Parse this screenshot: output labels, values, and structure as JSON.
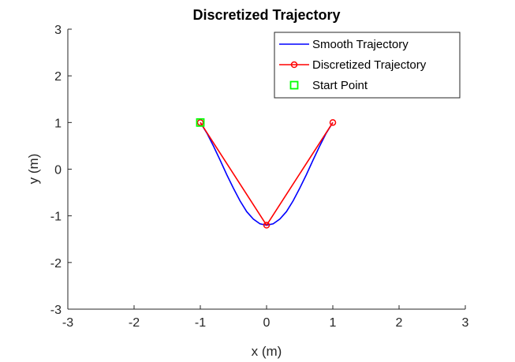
{
  "chart_data": {
    "type": "line",
    "title": "Discretized Trajectory",
    "xlabel": "x (m)",
    "ylabel": "y (m)",
    "xlim": [
      -3,
      3
    ],
    "ylim": [
      -3,
      3
    ],
    "xticks": [
      -3,
      -2,
      -1,
      0,
      1,
      2,
      3
    ],
    "yticks": [
      -3,
      -2,
      -1,
      0,
      1,
      2,
      3
    ],
    "xtick_labels": [
      "-3",
      "-2",
      "-1",
      "0",
      "1",
      "2",
      "3"
    ],
    "ytick_labels": [
      "-3",
      "-2",
      "-1",
      "0",
      "1",
      "2",
      "3"
    ],
    "grid": false,
    "legend_position": "top-right",
    "series": [
      {
        "name": "Smooth Trajectory",
        "style": "line",
        "color": "#0000ff",
        "x": [
          -1.0,
          -0.9,
          -0.8,
          -0.7,
          -0.6,
          -0.5,
          -0.4,
          -0.3,
          -0.2,
          -0.1,
          0.0,
          0.1,
          0.2,
          0.3,
          0.4,
          0.5,
          0.6,
          0.7,
          0.8,
          0.9,
          1.0
        ],
        "y": [
          1.0,
          0.77,
          0.49,
          0.19,
          -0.12,
          -0.41,
          -0.68,
          -0.91,
          -1.07,
          -1.17,
          -1.2,
          -1.17,
          -1.07,
          -0.91,
          -0.68,
          -0.41,
          -0.12,
          0.19,
          0.49,
          0.77,
          1.0
        ]
      },
      {
        "name": "Discretized Trajectory",
        "style": "line-marker",
        "marker": "circle",
        "color": "#ff0000",
        "x": [
          -1,
          0,
          1
        ],
        "y": [
          1,
          -1.2,
          1
        ]
      },
      {
        "name": "Start Point",
        "style": "marker",
        "marker": "square",
        "color": "#00ff00",
        "x": [
          -1
        ],
        "y": [
          1
        ]
      }
    ]
  }
}
